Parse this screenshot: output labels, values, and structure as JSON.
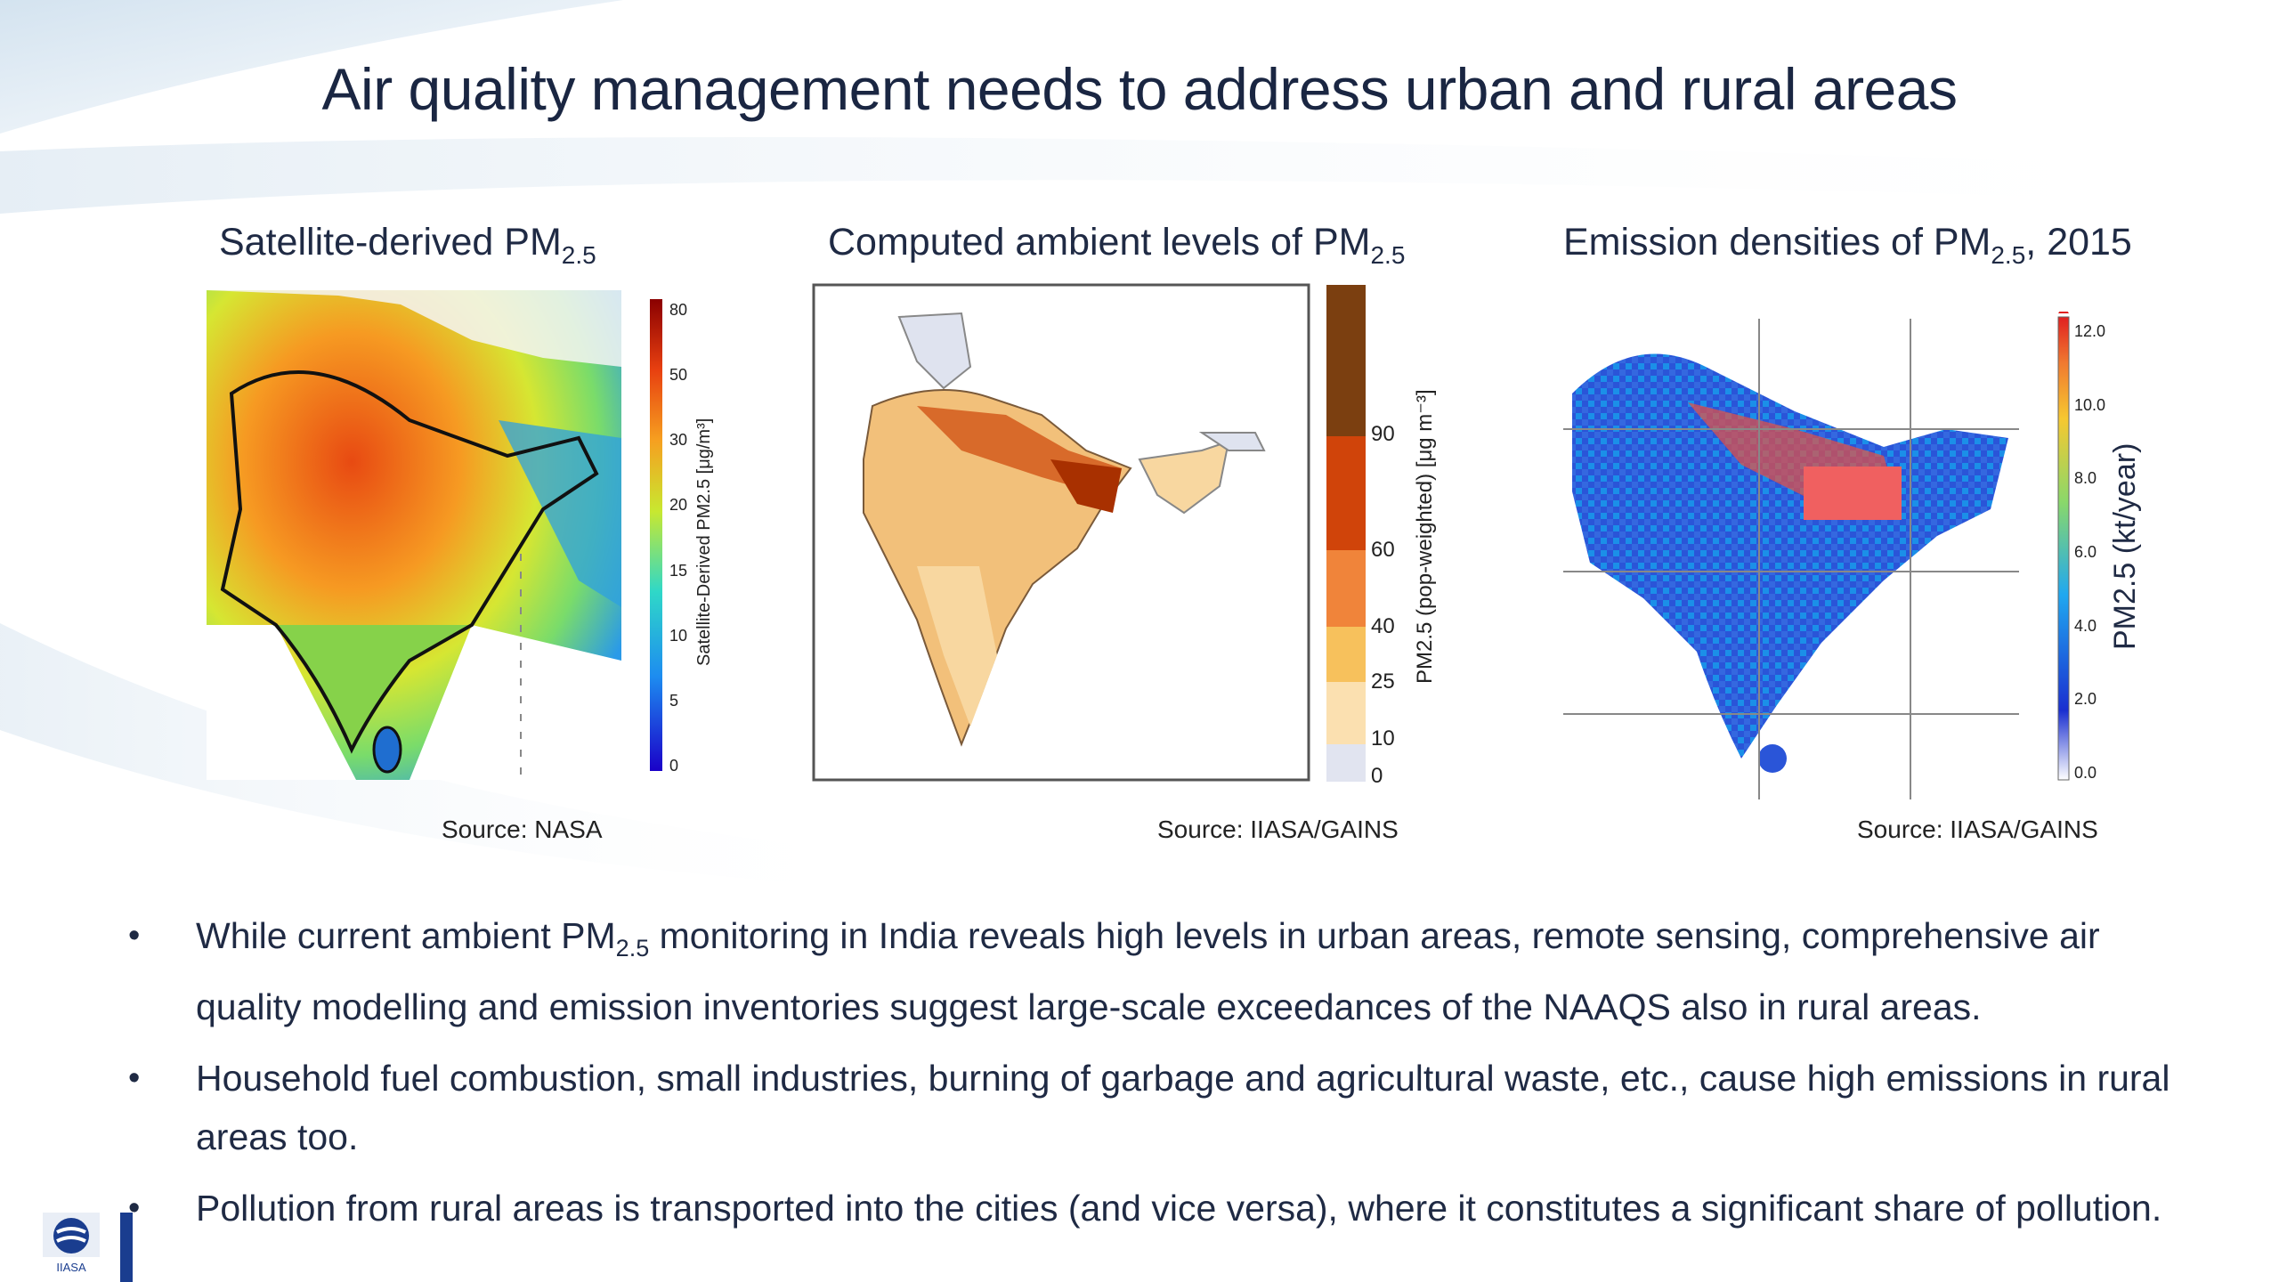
{
  "slide": {
    "title": "Air quality management needs to address urban and rural areas"
  },
  "panels": [
    {
      "title_pre": "Satellite-derived PM",
      "title_sub": "2.5",
      "title_post": "",
      "source": "Source: NASA",
      "colorbar_label": "Satellite-Derived PM2.5 [μg/m³]",
      "ticks": [
        "0",
        "5",
        "10",
        "15",
        "20",
        "30",
        "50",
        "80"
      ]
    },
    {
      "title_pre": "Computed ambient levels of PM",
      "title_sub": "2.5",
      "title_post": "",
      "source": "Source: IIASA/GAINS",
      "colorbar_label": "PM2.5 (pop-weighted) [μg m⁻³]",
      "ticks": [
        "0",
        "10",
        "25",
        "40",
        "60",
        "90"
      ]
    },
    {
      "title_pre": "Emission densities of PM",
      "title_sub": "2.5",
      "title_post": ", 2015",
      "source": "Source: IIASA/GAINS",
      "colorbar_label": "PM2.5 (kt/year)",
      "ticks": [
        "0.0",
        "2.0",
        "4.0",
        "6.0",
        "8.0",
        "10.0",
        "12.0"
      ]
    }
  ],
  "bullets": [
    {
      "pre": "While current ambient PM",
      "sub": "2.5",
      "post": " monitoring in India reveals high levels in urban areas, remote sensing, comprehensive air quality modelling and emission inventories suggest large-scale exceedances of the NAAQS also in rural areas."
    },
    {
      "pre": "Household fuel combustion, small industries, burning of garbage and agricultural waste, etc., cause high emissions in rural areas too.",
      "sub": "",
      "post": ""
    },
    {
      "pre": "Pollution from rural areas is transported into the cities (and vice versa), where it constitutes a significant share of pollution.",
      "sub": "",
      "post": ""
    }
  ],
  "bullet_glyph": "•",
  "logo_text": "IIASA",
  "colors": {
    "title": "#1a2642",
    "accent": "#1a3d8f"
  }
}
